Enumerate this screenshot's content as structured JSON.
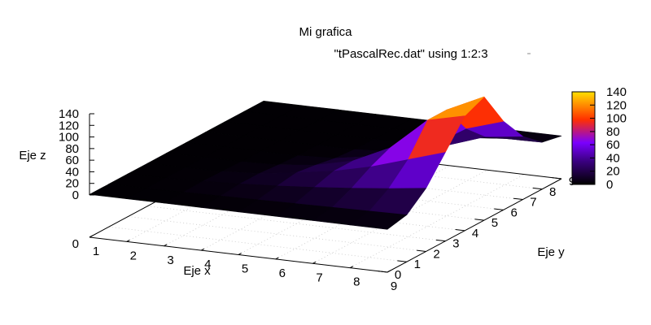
{
  "chart_data": {
    "type": "surface3d",
    "title": "Mi grafica",
    "series_name": "\"tPascalRec.dat\" using 1:2:3",
    "xlabel": "Eje x",
    "ylabel": "Eje y",
    "zlabel": "Eje z",
    "x_ticks": [
      "1",
      "2",
      "3",
      "4",
      "5",
      "6",
      "7",
      "8",
      "9"
    ],
    "y_ticks": [
      "0",
      "1",
      "2",
      "3",
      "4",
      "5",
      "6",
      "7",
      "8",
      "9"
    ],
    "z_ticks": [
      "0",
      "20",
      "40",
      "60",
      "80",
      "100",
      "120",
      "140"
    ],
    "z_base_label": "0",
    "colorbar_ticks": [
      "0",
      "20",
      "40",
      "60",
      "80",
      "100",
      "120",
      "140"
    ],
    "xlim": [
      1,
      9
    ],
    "ylim": [
      0,
      9
    ],
    "zlim": [
      0,
      140
    ],
    "grid": true,
    "palette": [
      "#000000",
      "#3a0080",
      "#7a00ff",
      "#ff3000",
      "#ffe000"
    ],
    "z_matrix": [
      [
        1,
        1,
        1,
        1,
        1,
        1,
        1,
        1,
        1,
        1
      ],
      [
        1,
        1,
        1,
        1,
        1,
        1,
        1,
        1,
        1,
        1
      ],
      [
        1,
        2,
        3,
        2,
        1,
        1,
        1,
        1,
        1,
        1
      ],
      [
        1,
        3,
        6,
        6,
        3,
        1,
        1,
        1,
        1,
        1
      ],
      [
        1,
        4,
        10,
        15,
        10,
        4,
        1,
        1,
        1,
        1
      ],
      [
        1,
        5,
        15,
        25,
        25,
        15,
        5,
        1,
        1,
        1
      ],
      [
        1,
        6,
        21,
        40,
        55,
        40,
        21,
        6,
        1,
        1
      ],
      [
        1,
        7,
        28,
        60,
        110,
        110,
        60,
        28,
        7,
        1
      ],
      [
        1,
        8,
        36,
        80,
        125,
        140,
        80,
        36,
        8,
        1
      ]
    ]
  }
}
